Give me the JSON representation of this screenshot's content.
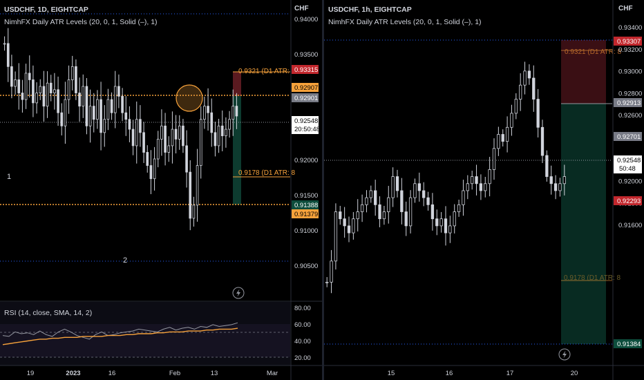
{
  "left": {
    "symbol": "USDCHF, 1D, EIGHTCAP",
    "indicator": "NimhFX Daily ATR Levels (20, 0, 1, Solid (–), 1)",
    "currency": "CHF",
    "price_ticks": [
      "0.94000",
      "0.93500",
      "0.93000",
      "0.92500",
      "0.92000",
      "0.91500",
      "0.91000",
      "0.90500"
    ],
    "time_ticks": [
      "19",
      "2023",
      "16",
      "Feb",
      "13",
      "Mar"
    ],
    "atr_upper_label": "0.9321 (D1 ATR: 8",
    "atr_lower_label": "0.9178 (D1 ATR: 8",
    "wave_labels": [
      "1",
      "2"
    ],
    "badges": {
      "atr_upper": "0.93315",
      "resistance": "0.92907",
      "target_top": "0.92901",
      "last_price": "0.92548",
      "countdown": "20:50:48",
      "target_bottom": "0.91388",
      "support": "0.91379"
    },
    "rsi": {
      "label": "RSI (14, close, SMA, 14, 2)",
      "ticks": [
        "80.00",
        "60.00",
        "40.00",
        "20.00"
      ]
    }
  },
  "right": {
    "symbol": "USDCHF, 1h, EIGHTCAP",
    "indicator": "NimhFX Daily ATR Levels (20, 0, 1, Solid (–), 1)",
    "currency": "CHF",
    "price_ticks": [
      "0.93400",
      "0.93200",
      "0.93000",
      "0.92800",
      "0.92600",
      "0.92400",
      "0.92200",
      "0.92000",
      "0.91800",
      "0.91600"
    ],
    "time_ticks": [
      "15",
      "16",
      "17",
      "20"
    ],
    "atr_upper_label": "0.9321 (D1 ATR: 8",
    "atr_lower_label": "0.9178 (D1 ATR: 8",
    "badges": {
      "high": "0.93307",
      "target_top": "0.92913",
      "entry": "0.92701",
      "last_price": "0.92548",
      "countdown": "50:48",
      "stop": "0.92293",
      "low": "0.91384"
    }
  },
  "colors": {
    "background": "#000000",
    "bull": "#d1d4dc",
    "bear": "#d1d4dc",
    "atr_orange": "#f7a23b",
    "dotted_blue": "#2962ff",
    "rsi_line": "#9598a1",
    "rsi_ma": "#f7a23b",
    "target_green": "#0b3a2e",
    "stop_red": "#4a1116"
  },
  "chart_data": [
    {
      "type": "line",
      "title": "USDCHF, 1D, EIGHTCAP",
      "xlabel": "",
      "ylabel": "CHF",
      "ylim": [
        0.9035,
        0.941
      ],
      "x_ticks": [
        "19",
        "2023",
        "16",
        "Feb",
        "13",
        "Mar"
      ],
      "series": [
        {
          "values": [
            0.9365,
            0.933,
            0.93,
            0.931,
            0.929,
            0.928,
            0.932,
            0.931,
            0.9275,
            0.929,
            0.93,
            0.927,
            0.9305,
            0.929,
            0.9295,
            0.926,
            0.924,
            0.928,
            0.931,
            0.933,
            0.929,
            0.927,
            0.93,
            0.924,
            0.927,
            0.925,
            0.928,
            0.923,
            0.925,
            0.928,
            0.926,
            0.93,
            0.9285,
            0.926,
            0.925,
            0.9235,
            0.921,
            0.925,
            0.923,
            0.92,
            0.918,
            0.916,
            0.919,
            0.922,
            0.924,
            0.92,
            0.921,
            0.9235,
            0.922,
            0.924,
            0.921,
            0.917,
            0.91,
            0.912,
            0.918,
            0.925,
            0.927,
            0.926,
            0.923,
            0.921,
            0.924,
            0.9225,
            0.9235,
            0.925,
            0.927,
            0.9255
          ]
        }
      ]
    },
    {
      "type": "line",
      "title": "RSI (14, close, SMA, 14, 2)",
      "xlabel": "",
      "ylabel": "",
      "ylim": [
        15,
        85
      ],
      "series": [
        {
          "values": [
            48,
            47,
            52,
            50,
            51,
            49,
            53,
            49,
            47,
            52,
            55,
            52,
            48,
            46,
            44,
            49,
            52,
            48,
            49,
            51,
            52,
            53,
            55,
            54,
            53,
            52,
            55,
            57,
            54,
            56,
            57,
            55,
            58,
            57,
            60,
            58,
            59,
            60,
            62
          ]
        },
        {
          "values": [
            38,
            39,
            40,
            41,
            42,
            43,
            44,
            44,
            45,
            45,
            46,
            46,
            46,
            47,
            47,
            47,
            47,
            48,
            48,
            48,
            49,
            49,
            50,
            50,
            50,
            51,
            51,
            52,
            52,
            52,
            53,
            53,
            53,
            54,
            54,
            55,
            55,
            55,
            56
          ]
        }
      ]
    },
    {
      "type": "line",
      "title": "USDCHF, 1h, EIGHTCAP",
      "xlabel": "",
      "ylabel": "CHF",
      "ylim": [
        0.9136,
        0.9352
      ],
      "x_ticks": [
        "15",
        "16",
        "17",
        "20"
      ],
      "series": [
        {
          "values": [
            0.918,
            0.9195,
            0.923,
            0.9225,
            0.922,
            0.9215,
            0.9225,
            0.923,
            0.9235,
            0.924,
            0.9245,
            0.9235,
            0.9225,
            0.923,
            0.924,
            0.9255,
            0.9245,
            0.923,
            0.922,
            0.924,
            0.925,
            0.9245,
            0.924,
            0.9235,
            0.9225,
            0.922,
            0.9225,
            0.9215,
            0.922,
            0.923,
            0.9235,
            0.9245,
            0.925,
            0.9255,
            0.925,
            0.9245,
            0.925,
            0.926,
            0.9275,
            0.9285,
            0.928,
            0.929,
            0.93,
            0.931,
            0.932,
            0.933,
            0.9325,
            0.931,
            0.929,
            0.927,
            0.9255,
            0.925,
            0.9245,
            0.925,
            0.9255
          ]
        }
      ]
    }
  ]
}
